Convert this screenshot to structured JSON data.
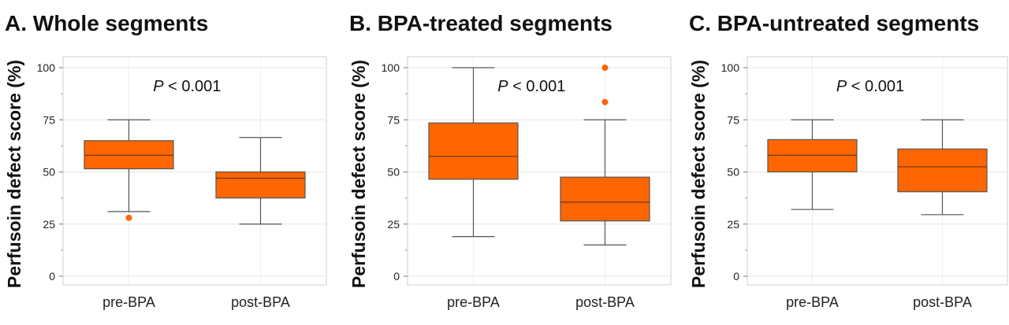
{
  "chart_data": [
    {
      "type": "box",
      "title": "A. Whole segments",
      "ylabel": "Perfusoin defect score (%)",
      "ylim": [
        0,
        100
      ],
      "yticks": [
        "0",
        "25",
        "50",
        "75",
        "100"
      ],
      "annotation": {
        "italic": "P",
        "text": " < 0.001"
      },
      "categories": [
        "pre-BPA",
        "post-BPA"
      ],
      "box_color": "#ff6600",
      "boxes": [
        {
          "whisker_low": 31,
          "q1": 51.5,
          "median": 58,
          "q3": 65,
          "whisker_high": 75,
          "outliers": [
            28
          ]
        },
        {
          "whisker_low": 25,
          "q1": 37.5,
          "median": 47,
          "q3": 50,
          "whisker_high": 66.5,
          "outliers": []
        }
      ]
    },
    {
      "type": "box",
      "title": "B. BPA-treated segments",
      "ylabel": "Perfusoin defect score (%)",
      "ylim": [
        0,
        100
      ],
      "yticks": [
        "0",
        "25",
        "50",
        "75",
        "100"
      ],
      "annotation": {
        "italic": "P",
        "text": " < 0.001"
      },
      "categories": [
        "pre-BPA",
        "post-BPA"
      ],
      "box_color": "#ff6600",
      "boxes": [
        {
          "whisker_low": 19,
          "q1": 46.5,
          "median": 57.5,
          "q3": 73.5,
          "whisker_high": 100,
          "outliers": []
        },
        {
          "whisker_low": 15,
          "q1": 26.5,
          "median": 35.5,
          "q3": 47.5,
          "whisker_high": 75,
          "outliers": [
            83.5,
            100
          ]
        }
      ]
    },
    {
      "type": "box",
      "title": "C. BPA-untreated segments",
      "ylabel": "Perfusoin defect score (%)",
      "ylim": [
        0,
        100
      ],
      "yticks": [
        "0",
        "25",
        "50",
        "75",
        "100"
      ],
      "annotation": {
        "italic": "P",
        "text": " < 0.001"
      },
      "categories": [
        "pre-BPA",
        "post-BPA"
      ],
      "box_color": "#ff6600",
      "boxes": [
        {
          "whisker_low": 32,
          "q1": 50,
          "median": 58,
          "q3": 65.5,
          "whisker_high": 75,
          "outliers": []
        },
        {
          "whisker_low": 29.5,
          "q1": 40.5,
          "median": 52.5,
          "q3": 61,
          "whisker_high": 75,
          "outliers": []
        }
      ]
    }
  ]
}
